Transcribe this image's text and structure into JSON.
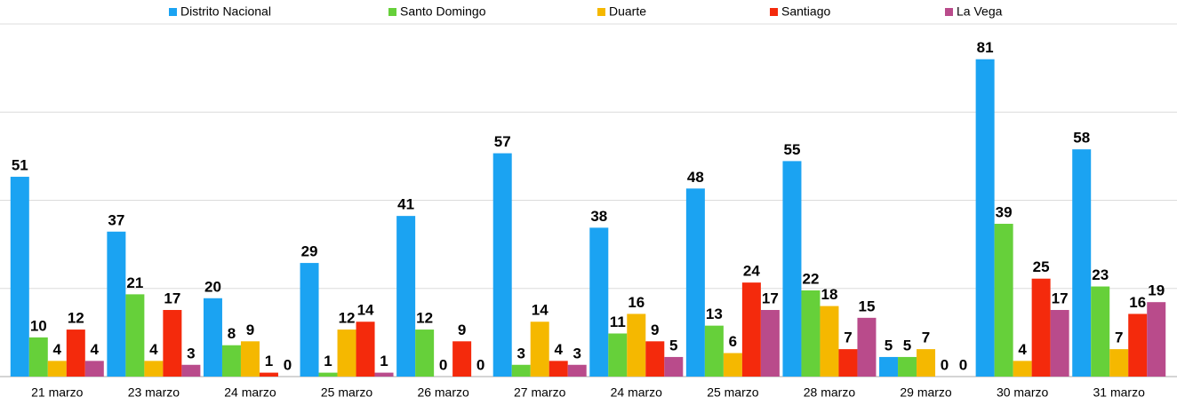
{
  "chart_data": {
    "type": "bar",
    "categories": [
      "21 marzo",
      "23 marzo",
      "24 marzo",
      "25 marzo",
      "26 marzo",
      "27 marzo",
      "24 marzo",
      "25 marzo",
      "28 marzo",
      "29 marzo",
      "30 marzo",
      "31 marzo"
    ],
    "series": [
      {
        "name": "Distrito Nacional",
        "color": "#1ba3f2",
        "values": [
          51,
          37,
          20,
          29,
          41,
          57,
          38,
          48,
          55,
          5,
          81,
          58
        ]
      },
      {
        "name": "Santo Domingo",
        "color": "#66d03a",
        "values": [
          10,
          21,
          8,
          1,
          12,
          3,
          11,
          13,
          22,
          5,
          39,
          23
        ]
      },
      {
        "name": "Duarte",
        "color": "#f5b800",
        "values": [
          4,
          4,
          9,
          12,
          0,
          14,
          16,
          6,
          18,
          7,
          4,
          7
        ]
      },
      {
        "name": "Santiago",
        "color": "#f42a0c",
        "values": [
          12,
          17,
          1,
          14,
          9,
          4,
          9,
          24,
          7,
          0,
          25,
          16
        ]
      },
      {
        "name": "La Vega",
        "color": "#b94b8b",
        "values": [
          4,
          3,
          0,
          1,
          0,
          3,
          5,
          17,
          15,
          0,
          17,
          19
        ]
      }
    ],
    "ylim": [
      0,
      90
    ],
    "yticks": [
      0,
      22.5,
      45,
      67.5,
      90
    ],
    "grid": true,
    "legend": "top"
  }
}
